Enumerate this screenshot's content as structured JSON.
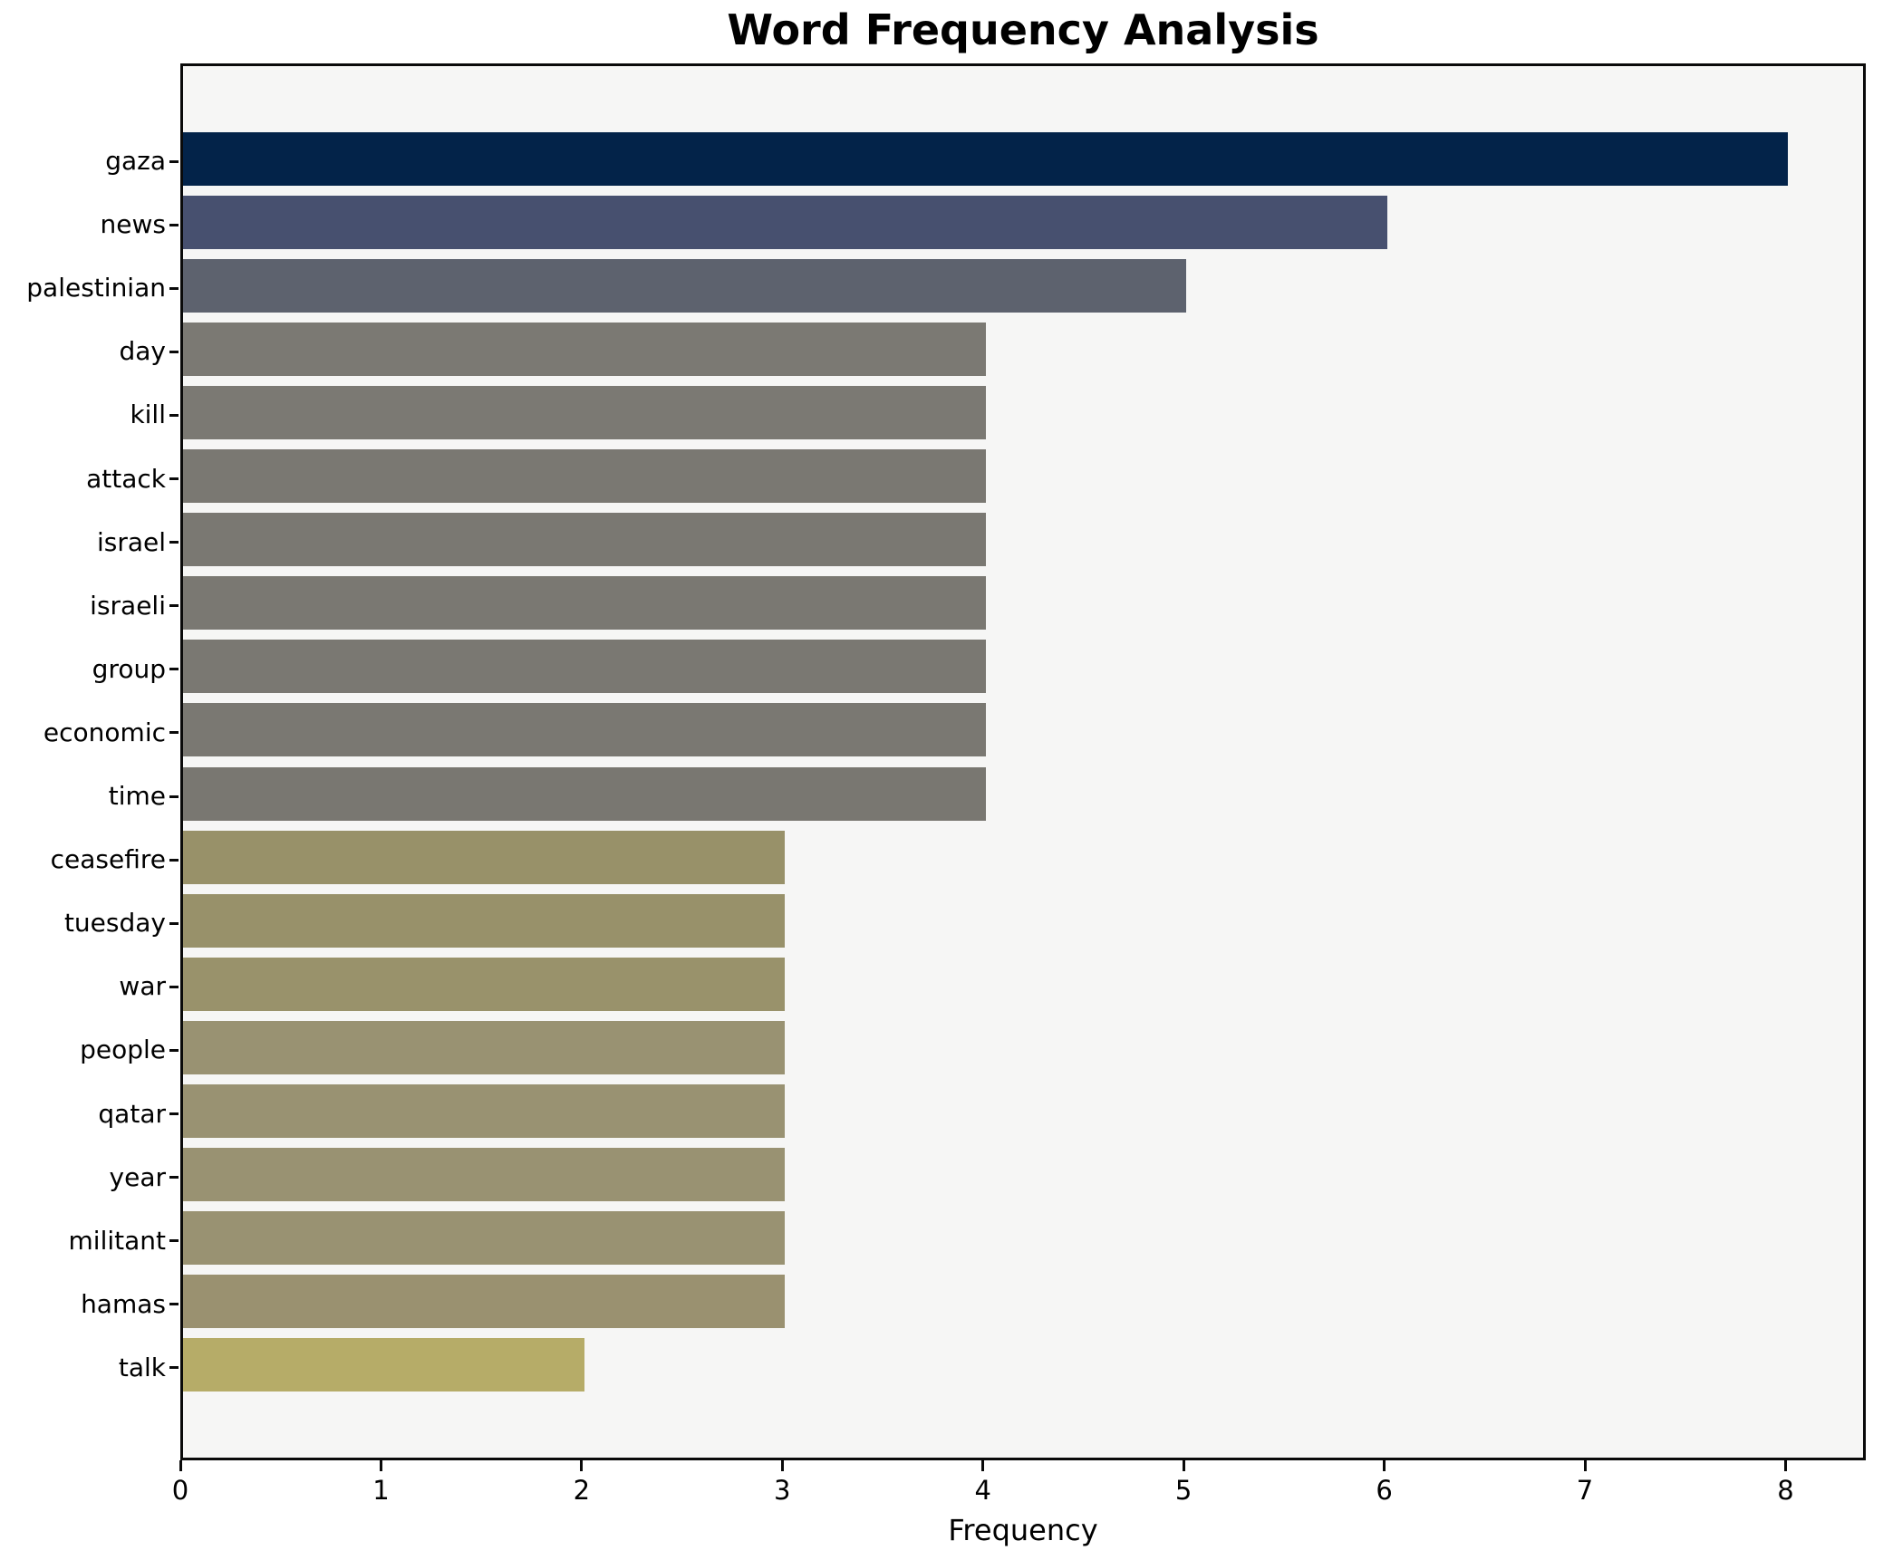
{
  "chart_data": {
    "type": "bar",
    "orientation": "horizontal",
    "title": "Word Frequency Analysis",
    "xlabel": "Frequency",
    "ylabel": "",
    "xlim": [
      0,
      8.4
    ],
    "x_ticks": [
      "0",
      "1",
      "2",
      "3",
      "4",
      "5",
      "6",
      "7",
      "8"
    ],
    "grid": false,
    "legend": "none",
    "plot_background": "#f6f6f5",
    "axis_color": "#0a0a0a",
    "text_color": "#000000",
    "categories": [
      "gaza",
      "news",
      "palestinian",
      "day",
      "kill",
      "attack",
      "israel",
      "israeli",
      "group",
      "economic",
      "time",
      "ceasefire",
      "tuesday",
      "war",
      "people",
      "qatar",
      "year",
      "militant",
      "hamas",
      "talk"
    ],
    "values": [
      8,
      6,
      5,
      4,
      4,
      4,
      4,
      4,
      4,
      4,
      4,
      3,
      3,
      3,
      3,
      3,
      3,
      3,
      3,
      2
    ],
    "bars": [
      {
        "label": "gaza",
        "value": 8,
        "color": "#032349"
      },
      {
        "label": "news",
        "value": 6,
        "color": "#47506f"
      },
      {
        "label": "palestinian",
        "value": 5,
        "color": "#5d626e"
      },
      {
        "label": "day",
        "value": 4,
        "color": "#7b7973"
      },
      {
        "label": "kill",
        "value": 4,
        "color": "#7b7973"
      },
      {
        "label": "attack",
        "value": 4,
        "color": "#7a7872"
      },
      {
        "label": "israel",
        "value": 4,
        "color": "#7a7872"
      },
      {
        "label": "israeli",
        "value": 4,
        "color": "#7a7872"
      },
      {
        "label": "group",
        "value": 4,
        "color": "#7a7872"
      },
      {
        "label": "economic",
        "value": 4,
        "color": "#7a7872"
      },
      {
        "label": "time",
        "value": 4,
        "color": "#797771"
      },
      {
        "label": "ceasefire",
        "value": 3,
        "color": "#989169"
      },
      {
        "label": "tuesday",
        "value": 3,
        "color": "#98916a"
      },
      {
        "label": "war",
        "value": 3,
        "color": "#99926b"
      },
      {
        "label": "people",
        "value": 3,
        "color": "#999272"
      },
      {
        "label": "qatar",
        "value": 3,
        "color": "#999272"
      },
      {
        "label": "year",
        "value": 3,
        "color": "#999272"
      },
      {
        "label": "militant",
        "value": 3,
        "color": "#999272"
      },
      {
        "label": "hamas",
        "value": 3,
        "color": "#9a9170"
      },
      {
        "label": "talk",
        "value": 2,
        "color": "#b6ac68"
      }
    ]
  }
}
